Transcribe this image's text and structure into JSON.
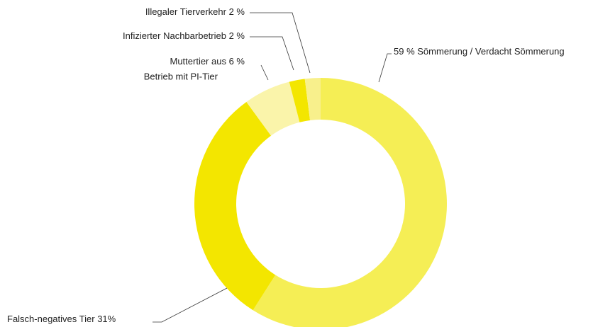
{
  "chart_data": {
    "type": "donut",
    "categories": [
      "Sömmerung / Verdacht Sömmerung",
      "Falsch-negatives Tier",
      [
        "Muttertier aus",
        "Betrieb mit PI-Tier"
      ],
      "Infizierter Nachbarbetrieb",
      "Illegaler Tierverkehr"
    ],
    "values": [
      59,
      31,
      6,
      2,
      2
    ],
    "value_labels": [
      "59 %",
      "31%",
      "6 %",
      "2 %",
      "2 %"
    ],
    "colors": [
      "#f5ee55",
      "#f3e600",
      "#faf4aa",
      "#f3e600",
      "#f8f08c"
    ]
  }
}
